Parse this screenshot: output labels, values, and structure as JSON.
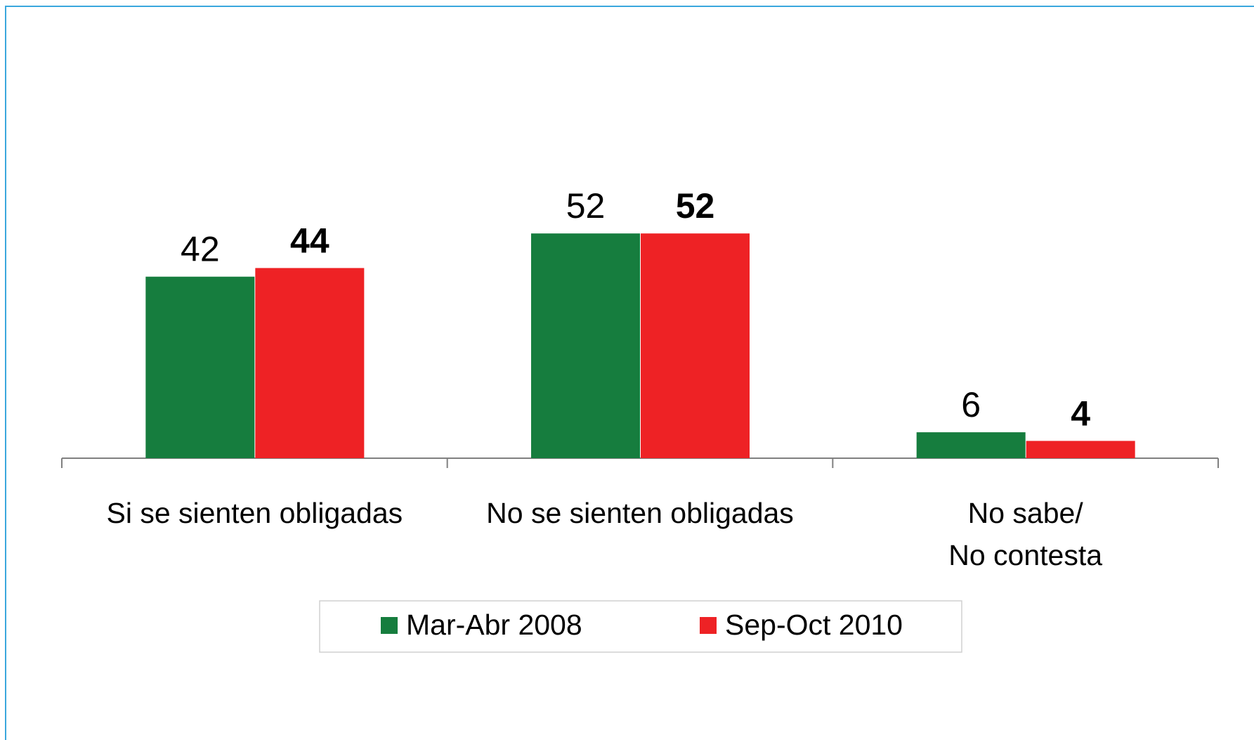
{
  "chart_data": {
    "type": "bar",
    "categories": [
      "Si se sienten obligadas",
      "No se sienten obligadas",
      "No sabe/\nNo contesta"
    ],
    "series": [
      {
        "name": "Mar-Abr 2008",
        "color": "#167d3e",
        "values": [
          42,
          52,
          6
        ]
      },
      {
        "name": "Sep-Oct 2010",
        "color": "#ee2225",
        "values": [
          44,
          52,
          4
        ]
      }
    ]
  }
}
